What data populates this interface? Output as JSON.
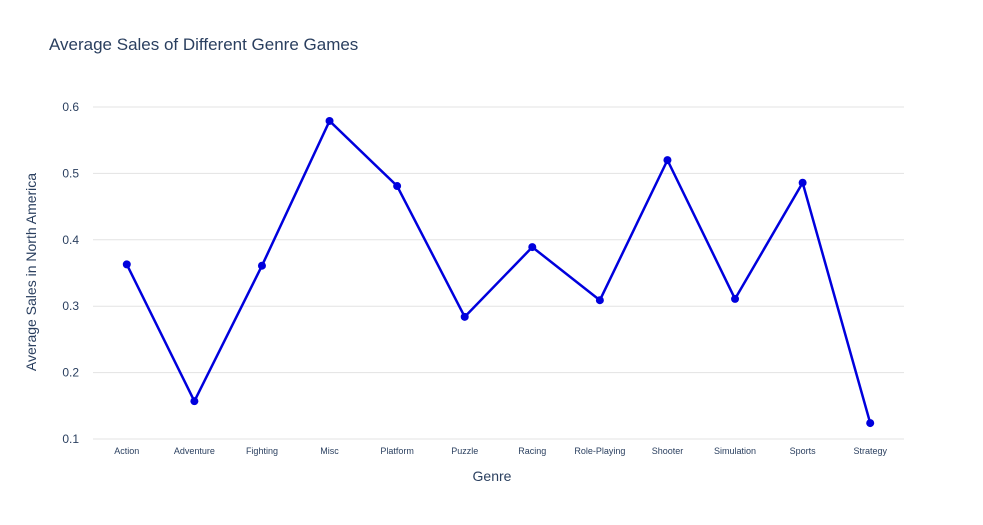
{
  "chart_data": {
    "type": "line",
    "title": "Average Sales of Different Genre Games",
    "xlabel": "Genre",
    "ylabel": "Average Sales in North America",
    "categories": [
      "Action",
      "Adventure",
      "Fighting",
      "Misc",
      "Platform",
      "Puzzle",
      "Racing",
      "Role-Playing",
      "Shooter",
      "Simulation",
      "Sports",
      "Strategy"
    ],
    "series": [
      {
        "values": [
          0.363,
          0.157,
          0.361,
          0.579,
          0.481,
          0.284,
          0.389,
          0.309,
          0.52,
          0.311,
          0.486,
          0.124
        ]
      }
    ],
    "yticks": [
      0.1,
      0.2,
      0.3,
      0.4,
      0.5,
      0.6
    ],
    "ytick_labels": [
      "0.1",
      "0.2",
      "0.3",
      "0.4",
      "0.5",
      "0.6"
    ],
    "ylim": [
      0.1,
      0.6
    ],
    "grid": true,
    "legend": "none",
    "line_color": "#0000dd"
  }
}
